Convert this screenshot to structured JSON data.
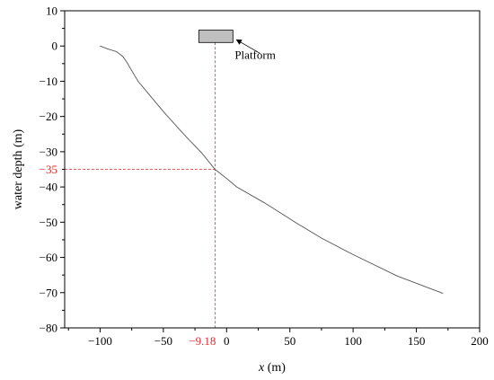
{
  "chart_data": {
    "type": "line",
    "xlabel_var": "x",
    "xlabel_unit": " (m)",
    "ylabel": "water depth (m)",
    "xlim": [
      -128,
      200
    ],
    "ylim": [
      -80,
      10
    ],
    "x_ticks": [
      -100,
      -50,
      0,
      50,
      100,
      150,
      200
    ],
    "y_ticks": [
      10,
      0,
      -10,
      -20,
      -30,
      -40,
      -50,
      -60,
      -70,
      -80
    ],
    "grid": false,
    "series": [
      {
        "color": "#555555",
        "points": [
          [
            -100,
            0
          ],
          [
            -94,
            -0.8
          ],
          [
            -87,
            -1.6
          ],
          [
            -82,
            -3
          ],
          [
            -79,
            -4.5
          ],
          [
            -75,
            -7
          ],
          [
            -70,
            -10
          ],
          [
            -60,
            -14.3
          ],
          [
            -50,
            -18.6
          ],
          [
            -40,
            -22.6
          ],
          [
            -30,
            -26.5
          ],
          [
            -20,
            -30.2
          ],
          [
            -9.18,
            -35
          ],
          [
            0,
            -37.6
          ],
          [
            8,
            -40
          ],
          [
            30,
            -44.5
          ],
          [
            55,
            -50.2
          ],
          [
            75,
            -54.5
          ],
          [
            100,
            -59.2
          ],
          [
            135,
            -65.3
          ],
          [
            171,
            -70.2
          ]
        ]
      }
    ],
    "reference_lines": {
      "x_value": -9.18,
      "x_label": "−9.18",
      "y_value": -35,
      "y_label": "−35",
      "color": "#e8262a"
    },
    "platform": {
      "label": "Platform",
      "x_range": [
        -22,
        5
      ],
      "y_range": [
        1,
        4.5
      ],
      "fill": "#bfbfbf"
    }
  }
}
